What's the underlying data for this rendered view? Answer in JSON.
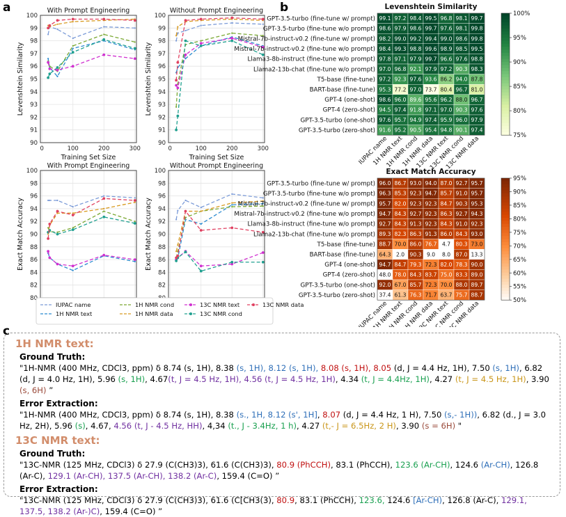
{
  "labels": {
    "a": "a",
    "b": "b",
    "c": "c"
  },
  "line_charts": [
    {
      "id": "ls_with",
      "title": "With Prompt Engineering",
      "xlabel": "Training Set Size",
      "ylabel": "Levenshtein Similarity",
      "ylim": [
        90,
        100
      ],
      "yticks": [
        90,
        91,
        92,
        93,
        94,
        95,
        96,
        97,
        98,
        99,
        100
      ],
      "xticks": [
        0,
        100,
        200,
        300
      ],
      "x": [
        20,
        25,
        50,
        100,
        200,
        300
      ],
      "series": [
        {
          "name": "IUPAC name",
          "color": "#7b9bd8",
          "dash": "6,4",
          "marker": "none",
          "values": [
            98.5,
            99.1,
            98.9,
            98.2,
            99.1,
            99.0
          ]
        },
        {
          "name": "1H NMR text",
          "color": "#2b8bd0",
          "dash": "6,4",
          "marker": "none",
          "values": [
            96.6,
            95.9,
            95.2,
            97.4,
            98.0,
            97.3
          ]
        },
        {
          "name": "1H NMR cond",
          "color": "#7aa832",
          "dash": "6,4",
          "marker": "none",
          "values": [
            96.4,
            96.0,
            95.6,
            97.6,
            98.5,
            97.9
          ]
        },
        {
          "name": "1H NMR data",
          "color": "#d89a20",
          "dash": "6,4",
          "marker": "none",
          "values": [
            99.2,
            99.1,
            99.3,
            99.5,
            99.6,
            99.7
          ]
        },
        {
          "name": "13C NMR text",
          "color": "#d030d0",
          "dash": "6,4",
          "marker": "circle",
          "values": [
            96.3,
            95.8,
            95.7,
            96.0,
            96.9,
            96.6
          ]
        },
        {
          "name": "13C NMR cond",
          "color": "#20a090",
          "dash": "6,4",
          "marker": "circle",
          "values": [
            95.1,
            95.4,
            95.9,
            97.1,
            98.1,
            97.4
          ]
        },
        {
          "name": "13C NMR data",
          "color": "#e04060",
          "dash": "6,4",
          "marker": "circle",
          "values": [
            99.0,
            99.2,
            99.6,
            99.7,
            99.7,
            99.6
          ]
        }
      ]
    },
    {
      "id": "ls_without",
      "title": "Without Prompt Engineering",
      "xlabel": "Training Set Size",
      "ylabel": "Levenshtein Similarity",
      "ylim": [
        90,
        100
      ],
      "yticks": [
        90,
        91,
        92,
        93,
        94,
        95,
        96,
        97,
        98,
        99,
        100
      ],
      "xticks": [
        0,
        100,
        200,
        300
      ],
      "x": [
        20,
        25,
        50,
        100,
        200,
        300
      ],
      "series": [
        {
          "name": "IUPAC name",
          "color": "#7b9bd8",
          "dash": "6,4",
          "marker": "none",
          "values": [
            98.0,
            98.6,
            98.8,
            99.2,
            99.4,
            99.3
          ]
        },
        {
          "name": "1H NMR text",
          "color": "#2b8bd0",
          "dash": "6,4",
          "marker": "none",
          "values": [
            95.5,
            95.9,
            96.6,
            97.6,
            98.3,
            97.6
          ]
        },
        {
          "name": "1H NMR cond",
          "color": "#7aa832",
          "dash": "6,4",
          "marker": "none",
          "values": [
            92.8,
            94.6,
            97.7,
            98.0,
            98.6,
            98.4
          ]
        },
        {
          "name": "1H NMR data",
          "color": "#d89a20",
          "dash": "6,4",
          "marker": "none",
          "values": [
            98.4,
            99.1,
            99.5,
            99.6,
            99.7,
            99.6
          ]
        },
        {
          "name": "13C NMR text",
          "color": "#d030d0",
          "dash": "6,4",
          "marker": "circle",
          "values": [
            94.5,
            94.3,
            96.9,
            97.8,
            98.2,
            97.5
          ]
        },
        {
          "name": "13C NMR cond",
          "color": "#20a090",
          "dash": "6,4",
          "marker": "circle",
          "values": [
            91.0,
            92.1,
            98.0,
            97.6,
            98.0,
            96.9
          ]
        },
        {
          "name": "13C NMR data",
          "color": "#e04060",
          "dash": "6,4",
          "marker": "circle",
          "values": [
            94.9,
            96.3,
            99.6,
            99.7,
            99.8,
            99.7
          ]
        }
      ]
    },
    {
      "id": "em_with",
      "title": "With Prompt Engineering",
      "xlabel": "Training Set Size",
      "ylabel": "Exact Match Accuracy",
      "ylim": [
        80,
        100
      ],
      "yticks": [
        80,
        82,
        84,
        86,
        88,
        90,
        92,
        94,
        96,
        98,
        100
      ],
      "xticks": [
        0,
        100,
        200,
        300
      ],
      "x": [
        20,
        25,
        50,
        100,
        200,
        300
      ],
      "series": [
        {
          "name": "IUPAC name",
          "color": "#7b9bd8",
          "dash": "6,4",
          "marker": "none",
          "values": [
            95.3,
            95.3,
            95.3,
            94.3,
            96.0,
            95.7
          ]
        },
        {
          "name": "1H NMR text",
          "color": "#2b8bd0",
          "dash": "6,4",
          "marker": "none",
          "values": [
            87.0,
            86.3,
            85.3,
            84.3,
            86.6,
            85.7
          ]
        },
        {
          "name": "1H NMR cond",
          "color": "#7aa832",
          "dash": "6,4",
          "marker": "none",
          "values": [
            91.0,
            90.4,
            90.3,
            91.0,
            93.6,
            92.0
          ]
        },
        {
          "name": "1H NMR data",
          "color": "#d89a20",
          "dash": "6,4",
          "marker": "none",
          "values": [
            90.0,
            91.4,
            93.3,
            93.3,
            94.0,
            95.0
          ]
        },
        {
          "name": "13C NMR text",
          "color": "#d030d0",
          "dash": "6,4",
          "marker": "circle",
          "values": [
            87.3,
            86.3,
            85.3,
            85.0,
            86.7,
            86.0
          ]
        },
        {
          "name": "13C NMR cond",
          "color": "#20a090",
          "dash": "6,4",
          "marker": "circle",
          "values": [
            90.3,
            90.6,
            90.0,
            90.7,
            92.7,
            91.7
          ]
        },
        {
          "name": "13C NMR data",
          "color": "#e04060",
          "dash": "6,4",
          "marker": "circle",
          "values": [
            89.3,
            91.6,
            93.6,
            93.0,
            95.6,
            95.3
          ]
        }
      ]
    },
    {
      "id": "em_without",
      "title": "Without Prompt Engineering",
      "xlabel": "Training Set Size",
      "ylabel": "Exact Match Accuracy",
      "ylim": [
        80,
        100
      ],
      "yticks": [
        80,
        82,
        84,
        86,
        88,
        90,
        92,
        94,
        96,
        98,
        100
      ],
      "xticks": [
        0,
        100,
        200,
        300
      ],
      "x": [
        20,
        25,
        50,
        100,
        200,
        300
      ],
      "series": [
        {
          "name": "IUPAC name",
          "color": "#7b9bd8",
          "dash": "6,4",
          "marker": "none",
          "values": [
            92.3,
            93.7,
            95.3,
            94.2,
            96.3,
            95.7
          ]
        },
        {
          "name": "1H NMR text",
          "color": "#2b8bd0",
          "dash": "6,4",
          "marker": "none",
          "values": [
            86.3,
            86.2,
            92.3,
            91.6,
            94.6,
            94.8
          ]
        },
        {
          "name": "1H NMR cond",
          "color": "#7aa832",
          "dash": "6,4",
          "marker": "none",
          "values": [
            86.3,
            87.3,
            92.6,
            93.6,
            94.3,
            94.4
          ]
        },
        {
          "name": "1H NMR data",
          "color": "#d89a20",
          "dash": "6,4",
          "marker": "none",
          "values": [
            87.3,
            88.3,
            93.6,
            93.6,
            94.9,
            95.2
          ]
        },
        {
          "name": "13C NMR text",
          "color": "#d030d0",
          "dash": "6,4",
          "marker": "circle",
          "values": [
            86.0,
            86.3,
            87.3,
            85.0,
            85.3,
            87.1
          ]
        },
        {
          "name": "13C NMR cond",
          "color": "#20a090",
          "dash": "6,4",
          "marker": "circle",
          "values": [
            85.8,
            86.3,
            87.2,
            84.2,
            85.6,
            85.6
          ]
        },
        {
          "name": "13C NMR data",
          "color": "#e04060",
          "dash": "6,4",
          "marker": "circle",
          "values": [
            86.3,
            86.6,
            93.6,
            90.6,
            91.0,
            90.3
          ]
        }
      ]
    }
  ],
  "legend": [
    "IUPAC name",
    "1H NMR text",
    "1H NMR cond",
    "1H NMR data",
    "13C NMR text",
    "13C NMR cond",
    "13C NMR data"
  ],
  "chart_data": [
    {
      "type": "heatmap",
      "title": "Levenshtein Similarity",
      "rows": [
        "GPT-3.5-turbo (fine-tune w/ prompt)",
        "GPT-3.5-turbo (fine-tune w/o prompt)",
        "Mistral-7b-instruct-v0.2 (fine-tune w/ prompt)",
        "Mistral-7b-instruct-v0.2 (fine-tune w/o prompt)",
        "Llama3-8b-instruct (fine-tune w/o prompt)",
        "Llama2-13b-chat (fine-tune w/o prompt)",
        "T5-base (fine-tune)",
        "BART-base (fine-tune)",
        "GPT-4 (one-shot)",
        "GPT-4 (zero-shot)",
        "GPT-3.5-turbo (one-shot)",
        "GPT-3.5-turbo (zero-shot)"
      ],
      "cols": [
        "IUPAC name",
        "1H NMR text",
        "1H NMR cond",
        "1H NMR data",
        "13C NMR text",
        "13C NMR cond",
        "13C NMR data"
      ],
      "values": [
        [
          99.1,
          97.2,
          98.4,
          99.5,
          96.8,
          98.1,
          99.7
        ],
        [
          98.6,
          97.9,
          98.6,
          99.7,
          97.6,
          98.1,
          99.8
        ],
        [
          98.2,
          99.0,
          99.2,
          99.4,
          99.0,
          98.6,
          99.8
        ],
        [
          98.4,
          99.3,
          98.8,
          99.6,
          98.9,
          98.5,
          99.5
        ],
        [
          97.8,
          97.1,
          97.9,
          99.7,
          96.6,
          97.6,
          98.8
        ],
        [
          97.0,
          96.8,
          92.1,
          97.9,
          97.2,
          90.3,
          98.3
        ],
        [
          97.2,
          92.3,
          97.6,
          93.6,
          86.2,
          94.0,
          87.8
        ],
        [
          95.3,
          77.2,
          97.0,
          73.7,
          80.4,
          96.7,
          81.0
        ],
        [
          98.6,
          96.0,
          89.6,
          95.6,
          96.2,
          88.0,
          96.7
        ],
        [
          94.5,
          97.4,
          91.8,
          97.1,
          97.0,
          90.3,
          97.6
        ],
        [
          97.6,
          95.7,
          94.9,
          97.4,
          95.9,
          96.0,
          97.9
        ],
        [
          91.6,
          95.2,
          90.5,
          95.4,
          94.8,
          90.1,
          97.4
        ]
      ],
      "colorbar": {
        "range": [
          75,
          100
        ],
        "ticks": [
          "100%",
          "95%",
          "90%",
          "85%",
          "80%",
          "75%"
        ]
      }
    },
    {
      "type": "heatmap",
      "title": "Exact Match Accuracy",
      "rows": [
        "GPT-3.5-turbo (fine-tune w/ prompt)",
        "GPT-3.5-turbo (fine-tune w/o prompt)",
        "Mistral-7b-instruct-v0.2 (fine-tune w/ prompt)",
        "Mistral-7b-instruct-v0.2 (fine-tune w/o prompt)",
        "Llama3-8b-instruct (fine-tune w/o prompt)",
        "Llama2-13b-chat (fine-tune w/o prompt)",
        "T5-base (fine-tune)",
        "BART-base (fine-tune)",
        "GPT-4 (one-shot)",
        "GPT-4 (zero-shot)",
        "GPT-3.5-turbo (one-shot)",
        "GPT-3.5-turbo (zero-shot)"
      ],
      "cols": [
        "IUPAC name",
        "1H NMR text",
        "1H NMR cond",
        "1H NMR data",
        "13C NMR text",
        "13C NMR cond",
        "13C NMR data"
      ],
      "values": [
        [
          96.0,
          86.7,
          93.0,
          94.0,
          87.0,
          92.7,
          95.7
        ],
        [
          96.3,
          85.3,
          92.3,
          94.7,
          85.7,
          91.0,
          95.7
        ],
        [
          95.7,
          82.0,
          92.3,
          92.3,
          84.7,
          90.3,
          95.3
        ],
        [
          94.7,
          84.3,
          92.7,
          92.3,
          86.3,
          92.7,
          94.3
        ],
        [
          92.7,
          84.3,
          91.3,
          92.3,
          84.3,
          91.0,
          92.3
        ],
        [
          89.3,
          82.3,
          86.3,
          91.3,
          86.0,
          84.3,
          93.0
        ],
        [
          88.7,
          70.0,
          86.0,
          76.7,
          4.7,
          80.3,
          73.0
        ],
        [
          64.3,
          2.0,
          90.3,
          9.0,
          8.0,
          87.0,
          13.3
        ],
        [
          94.7,
          84.7,
          79.3,
          72.3,
          82.0,
          78.3,
          90.0
        ],
        [
          48.0,
          78.0,
          84.3,
          83.7,
          75.0,
          83.3,
          89.0
        ],
        [
          92.0,
          67.0,
          85.7,
          72.3,
          70.0,
          88.0,
          89.7
        ],
        [
          37.4,
          61.3,
          76.3,
          71.7,
          63.7,
          75.7,
          88.7
        ]
      ],
      "colorbar": {
        "range": [
          50,
          95
        ],
        "ticks": [
          "95%",
          "90%",
          "85%",
          "80%",
          "75%",
          "70%",
          "65%",
          "60%",
          "55%",
          "50%"
        ]
      }
    }
  ],
  "panel_c": {
    "h1_title": "1H NMR text:",
    "c13_title": "13C NMR text:",
    "gt_label": "Ground Truth:",
    "ee_label": "Error Extraction:",
    "h1_gt": [
      [
        "",
        "\"1H-NMR (400 MHz, CDCl3, ppm) δ 8.74 (s, 1H), 8.38 "
      ],
      [
        "blue",
        "(s, 1H), 8.12 (s, 1H),"
      ],
      [
        "",
        "  "
      ],
      [
        "red",
        "8.08 (s, 1H), 8.05"
      ],
      [
        "",
        "",
        " (d, J = 4.4 Hz, 1H), 7.50 "
      ],
      [
        "blue",
        "(s, 1H)"
      ],
      [
        "",
        ", 6.82 (d, J = 4.0 Hz, 1H), 5.96 "
      ],
      [
        "green",
        "(s, 1H)"
      ],
      [
        "",
        ", 4.67"
      ],
      [
        "purple",
        "(t, J = 4.5 Hz, 1H), 4.56 (t, J = 4.5 Hz, 1H)"
      ],
      [
        "",
        ", 4.34 "
      ],
      [
        "green",
        "(t, J = 4.4Hz, 1H)"
      ],
      [
        "",
        ", 4.27 "
      ],
      [
        "gold",
        "(t, J = 4.5 Hz, 1H)"
      ],
      [
        "",
        ", 3.90 "
      ],
      [
        "brown",
        "(s, 6H)"
      ],
      [
        "",
        "  ”"
      ]
    ],
    "h1_ee": [
      [
        "",
        "\"1H-NMR (400 MHz, CDCl3, ppm) δ 8.74 (s, 1H), 8.38 "
      ],
      [
        "blue",
        "(s., 1H, 8.12 (s', 1H]"
      ],
      [
        "",
        ", "
      ],
      [
        "red",
        "8.07"
      ],
      [
        "",
        "",
        " (d, J = 4.4 Hz, 1 H), 7.50 "
      ],
      [
        "blue",
        "(s,- 1H))"
      ],
      [
        "",
        ", 6.82 (d., J = 3.0 Hz, 2H),  5.96 "
      ],
      [
        "green",
        "(s)"
      ],
      [
        "",
        ", 4.67, "
      ],
      [
        "purple",
        "4.56 (t, J - 4.5 Hz, HH)"
      ],
      [
        "",
        ", 4,34 "
      ],
      [
        "green",
        "(t., J - 3.4Hz, 1 h)"
      ],
      [
        "",
        ", 4.27 "
      ],
      [
        "gold",
        "(t,- J = 6.5Hz, 2 H)"
      ],
      [
        "",
        ", 3.90 "
      ],
      [
        "brown",
        "(s = 6H)"
      ],
      [
        "",
        "  \""
      ]
    ],
    "c13_gt": [
      [
        "",
        "\"13C-NMR (125 MHz, CDCl3) δ 27.9 (C(CH3)3), 61.6 (C(CH3)3), "
      ],
      [
        "red",
        "80.9 (PhCCH)"
      ],
      [
        "",
        ", 83.1 (PhCCH), "
      ],
      [
        "green",
        "123.6 (Ar-CH)"
      ],
      [
        "",
        ", 124.6 "
      ],
      [
        "blue",
        "(Ar-CH)"
      ],
      [
        "",
        ", 126.8 (Ar-C), "
      ],
      [
        "purple",
        "129.1 (Ar-CH), 137.5 (Ar-CH), 138.2 (Ar-C)"
      ],
      [
        "",
        ", 159.4 (C=O)  ”"
      ]
    ],
    "c13_ee": [
      [
        "",
        "\"13C-NMR (125 MHz, CDCl3) δ 27.9 (C(CH3)3), 61.6 (C[CH3(3), "
      ],
      [
        "red",
        "80.9"
      ],
      [
        "",
        ", 83.1 (PhCCH), "
      ],
      [
        "green",
        "123.6,"
      ],
      [
        "",
        "  124.6 "
      ],
      [
        "blue",
        "[Ar-CH)"
      ],
      [
        "",
        ", 126.8 (Ar-C), "
      ],
      [
        "purple",
        "129.1, 137.5, 138.2 (Ar-)C)"
      ],
      [
        "",
        ", 159.4 (C=O)  ”"
      ]
    ]
  }
}
